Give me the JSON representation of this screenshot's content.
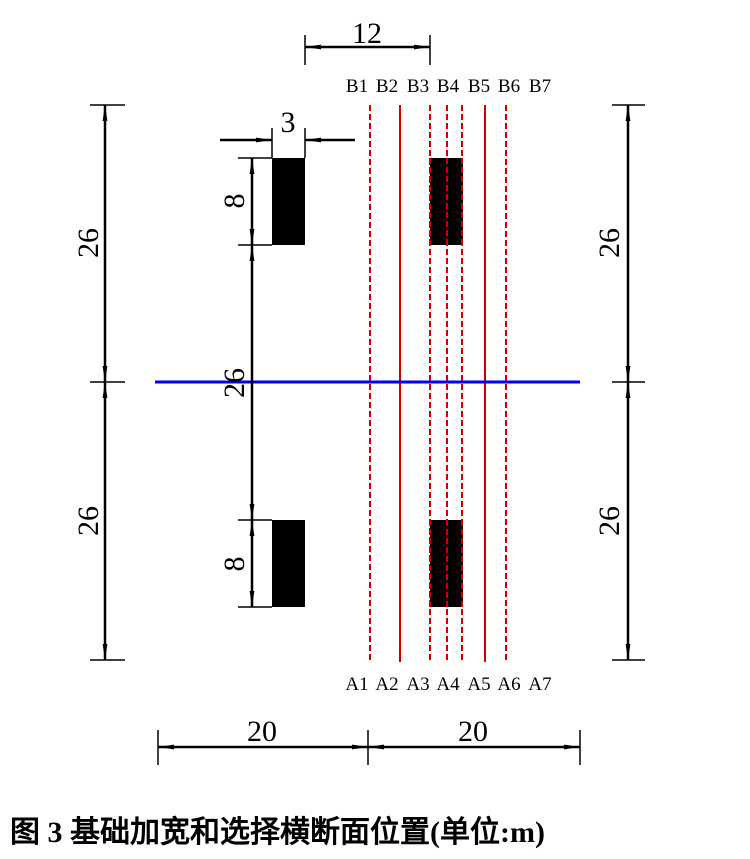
{
  "dimensions": {
    "top_span": 12,
    "foundation_width": 3,
    "left_upper": 26,
    "left_lower": 26,
    "right_upper": 26,
    "right_lower": 26,
    "inner_upper": 8,
    "inner_middle": 26,
    "inner_lower": 8,
    "bottom_left": 20,
    "bottom_right": 20
  },
  "section_labels": {
    "top": [
      "B1",
      "B2",
      "B3",
      "B4",
      "B5",
      "B6",
      "B7"
    ],
    "bottom": [
      "A1",
      "A2",
      "A3",
      "A4",
      "A5",
      "A6",
      "A7"
    ]
  },
  "caption": "图 3  基础加宽和选择横断面位置(单位:m)"
}
